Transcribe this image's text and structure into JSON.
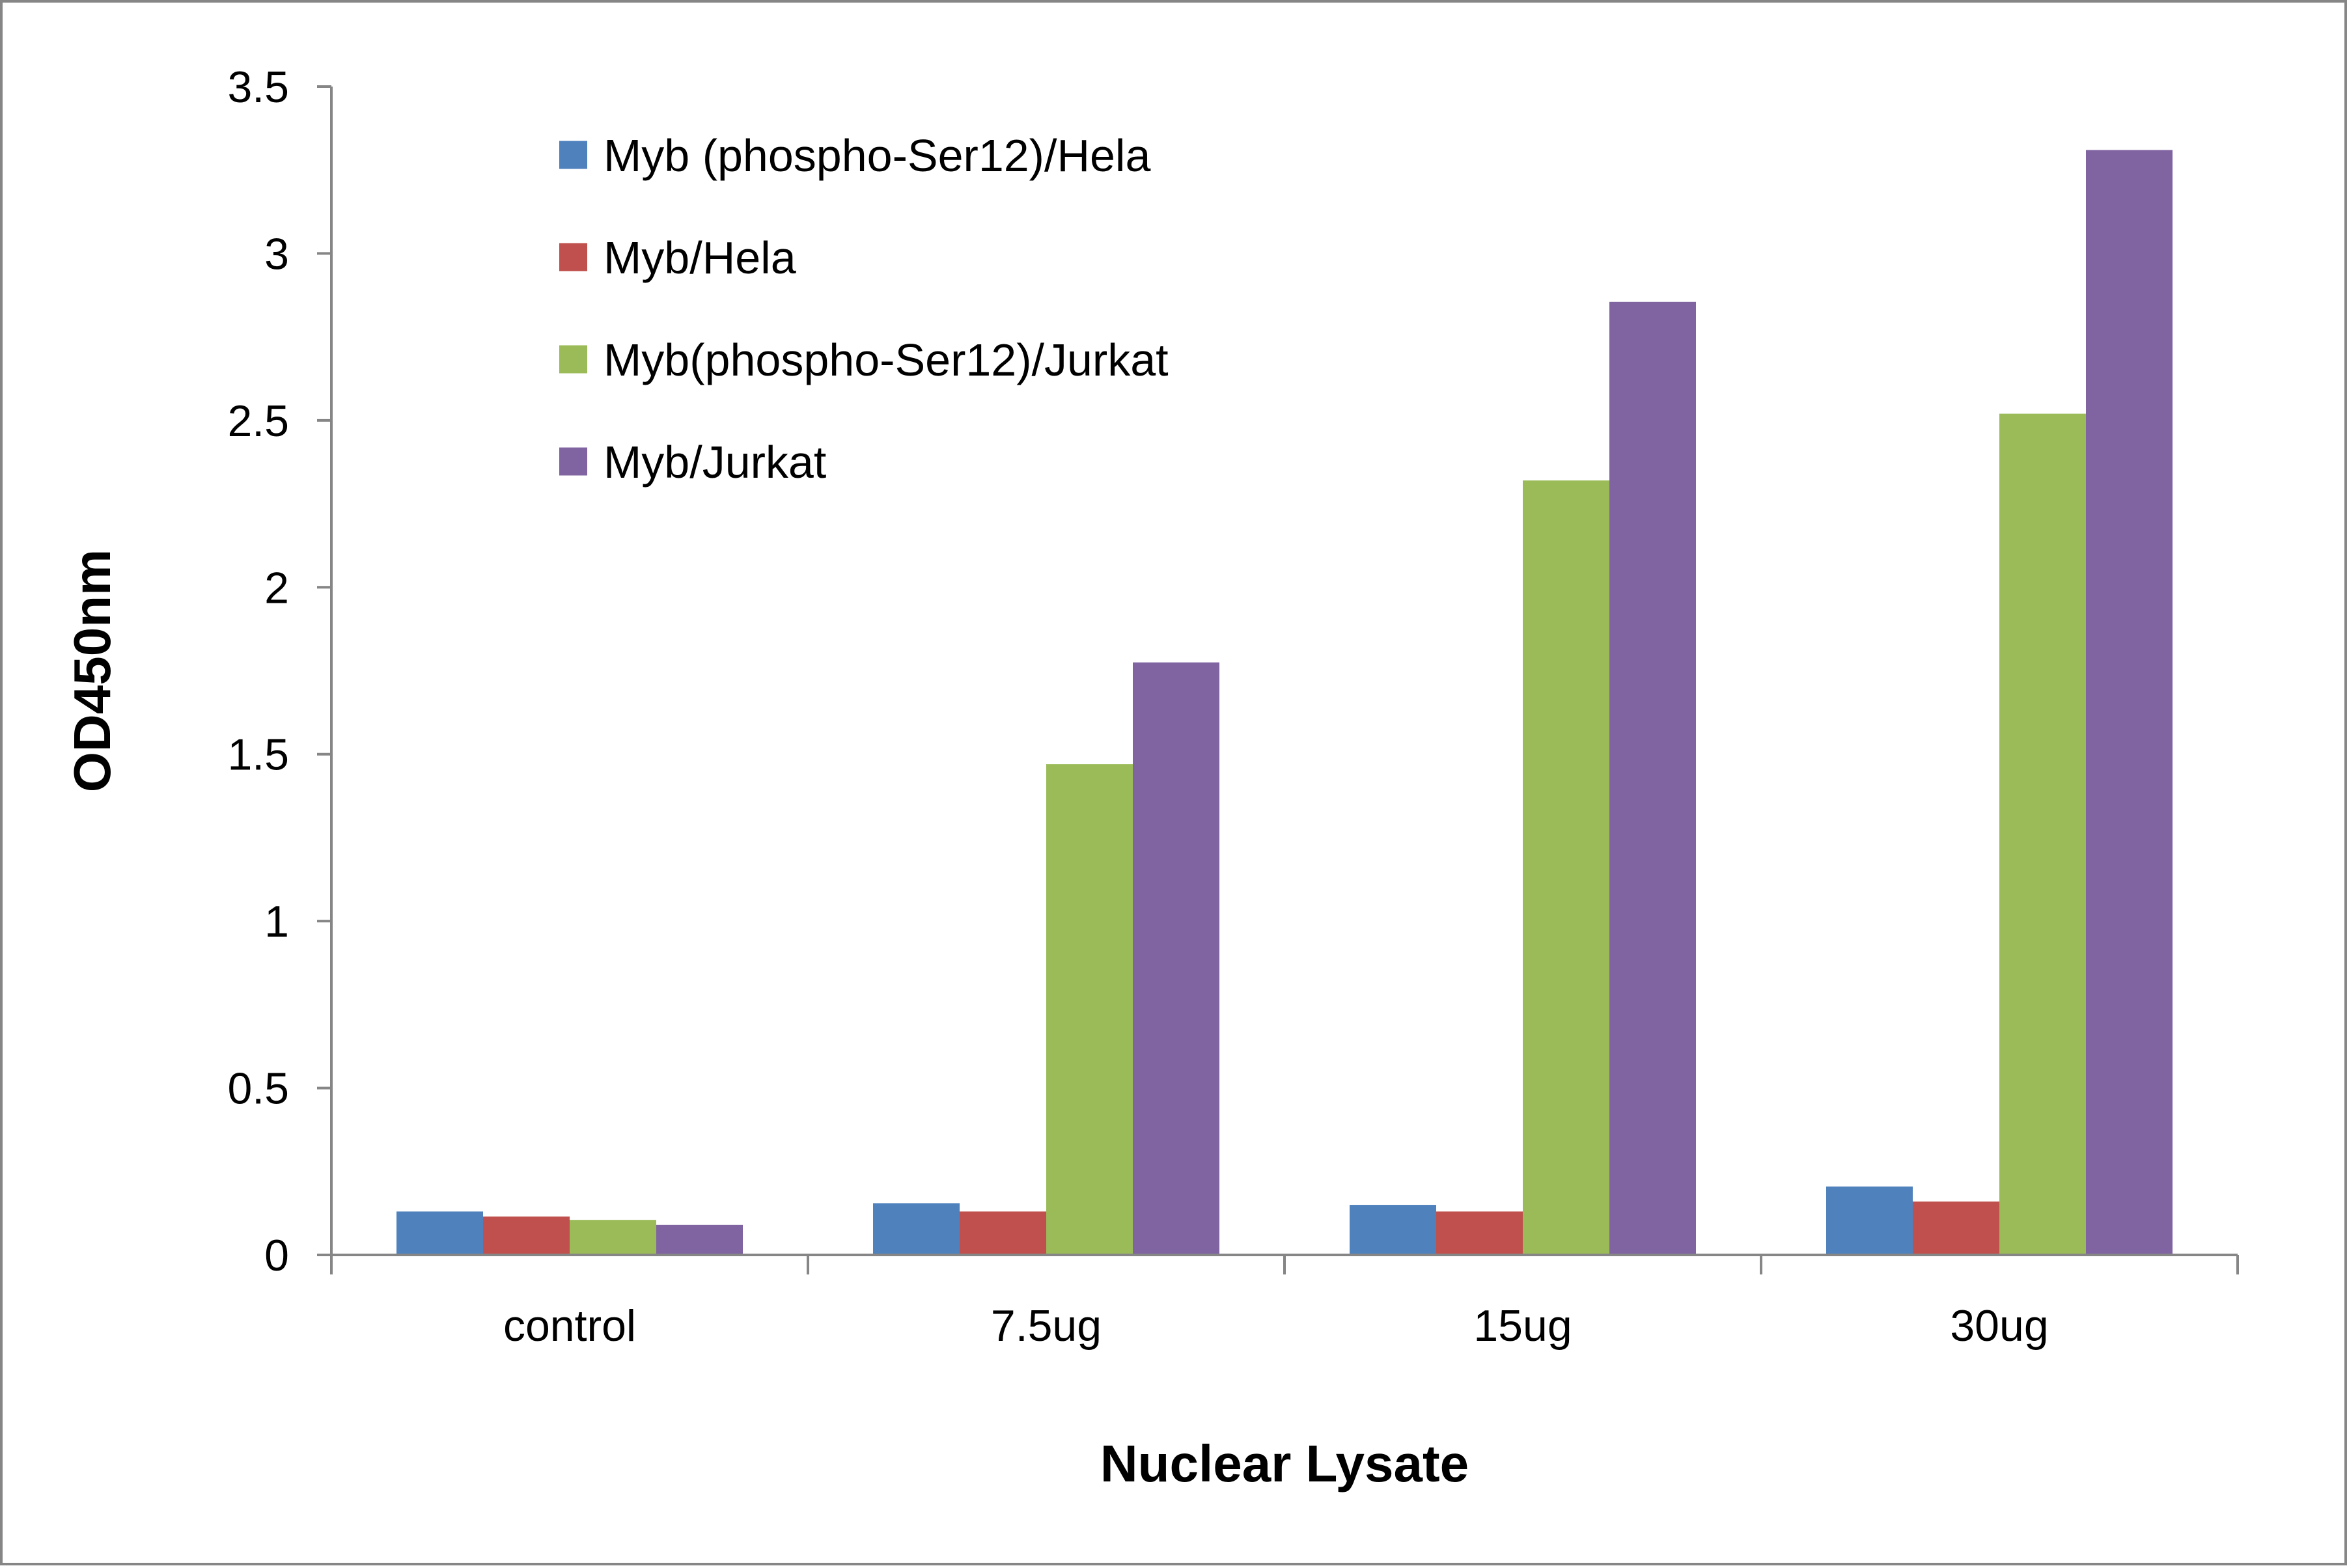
{
  "chart_data": {
    "type": "bar",
    "title": "",
    "xlabel": "Nuclear Lysate",
    "ylabel": "OD450nm",
    "categories": [
      "control",
      "7.5ug",
      "15ug",
      "30ug"
    ],
    "ylim": [
      0,
      3.5
    ],
    "yticks": [
      0,
      0.5,
      1,
      1.5,
      2,
      2.5,
      3,
      3.5
    ],
    "ytick_labels": [
      "0",
      "0.5",
      "1",
      "1.5",
      "2",
      "2.5",
      "3",
      "3.5"
    ],
    "grid": false,
    "legend_position": "top-left",
    "series": [
      {
        "name": "Myb (phospho-Ser12)/Hela",
        "color": "#4F81BD",
        "values": [
          0.13,
          0.155,
          0.15,
          0.205
        ]
      },
      {
        "name": "Myb/Hela",
        "color": "#C0504D",
        "values": [
          0.115,
          0.13,
          0.13,
          0.16
        ]
      },
      {
        "name": "Myb(phospho-Ser12)/Jurkat",
        "color": "#9BBB59",
        "values": [
          0.105,
          1.47,
          2.32,
          2.52
        ]
      },
      {
        "name": "Myb/Jurkat",
        "color": "#8064A2",
        "values": [
          0.09,
          1.775,
          2.855,
          3.31
        ]
      }
    ]
  }
}
